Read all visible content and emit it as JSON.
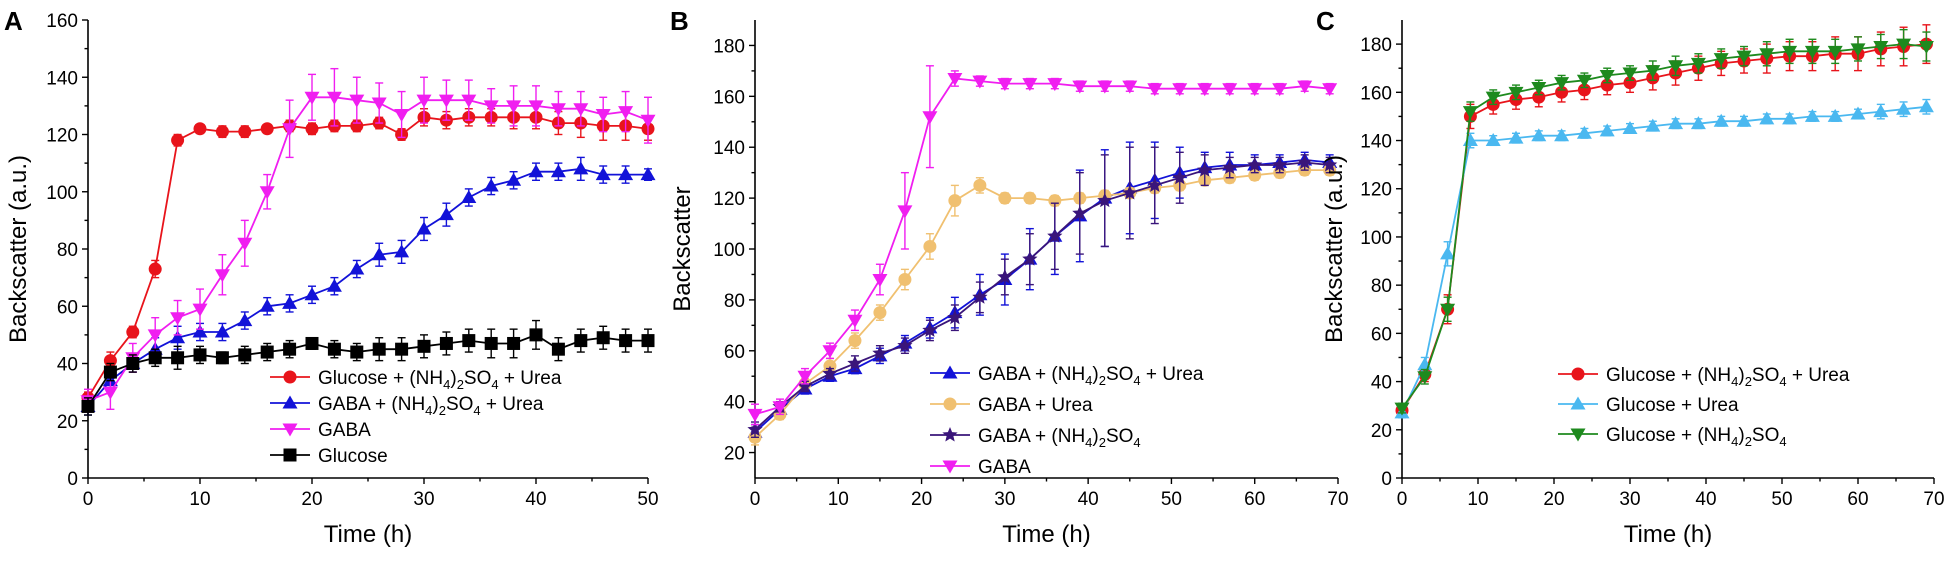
{
  "chart_data": [
    {
      "panel": "A",
      "type": "line",
      "xlabel": "Time (h)",
      "ylabel": "Backscatter (a.u.)",
      "xlim": [
        0,
        50
      ],
      "ylim": [
        0,
        160
      ],
      "xticks": [
        0,
        10,
        20,
        30,
        40,
        50
      ],
      "yticks": [
        0,
        20,
        40,
        60,
        80,
        100,
        120,
        140,
        160
      ],
      "legend_position": "bottom-right",
      "series": [
        {
          "name": "Glucose + (NH4)2SO4 + Urea",
          "label_parts": [
            "Glucose + (NH",
            "4",
            ")",
            "2",
            "SO",
            "4",
            " + Urea"
          ],
          "color": "#e8141b",
          "marker": "circle",
          "x": [
            0,
            2,
            4,
            6,
            8,
            10,
            12,
            14,
            16,
            18,
            20,
            22,
            24,
            26,
            28,
            30,
            32,
            34,
            36,
            38,
            40,
            42,
            44,
            46,
            48,
            50
          ],
          "y": [
            28,
            41,
            51,
            73,
            118,
            122,
            121,
            121,
            122,
            123,
            122,
            123,
            123,
            124,
            120,
            126,
            125,
            126,
            126,
            126,
            126,
            124,
            124,
            123,
            123,
            122
          ],
          "err": [
            2,
            3,
            2,
            3,
            2,
            1,
            2,
            2,
            1,
            2,
            2,
            2,
            2,
            2,
            2,
            3,
            3,
            3,
            3,
            4,
            4,
            4,
            5,
            5,
            5,
            4
          ]
        },
        {
          "name": "GABA + (NH4)2SO4 + Urea",
          "label_parts": [
            "GABA + (NH",
            "4",
            ")",
            "2",
            "SO",
            "4",
            " + Urea"
          ],
          "color": "#1212d8",
          "marker": "triangle-up",
          "x": [
            0,
            2,
            4,
            6,
            8,
            10,
            12,
            14,
            16,
            18,
            20,
            22,
            24,
            26,
            28,
            30,
            32,
            34,
            36,
            38,
            40,
            42,
            44,
            46,
            48,
            50
          ],
          "y": [
            25,
            34,
            40,
            45,
            49,
            51,
            51,
            55,
            60,
            61,
            64,
            67,
            73,
            78,
            79,
            87,
            92,
            98,
            102,
            104,
            107,
            107,
            108,
            106,
            106,
            106
          ],
          "err": [
            3,
            3,
            3,
            4,
            4,
            3,
            3,
            3,
            3,
            3,
            3,
            3,
            3,
            4,
            4,
            4,
            4,
            3,
            3,
            3,
            3,
            3,
            4,
            3,
            3,
            2
          ]
        },
        {
          "name": "GABA",
          "label_parts": [
            "GABA"
          ],
          "color": "#f01ef0",
          "marker": "triangle-down",
          "x": [
            0,
            2,
            4,
            6,
            8,
            10,
            12,
            14,
            16,
            18,
            20,
            22,
            24,
            26,
            28,
            30,
            32,
            34,
            36,
            38,
            40,
            42,
            44,
            46,
            48,
            50
          ],
          "y": [
            27,
            30,
            42,
            50,
            56,
            59,
            71,
            82,
            100,
            122,
            133,
            133,
            132,
            131,
            127,
            132,
            132,
            132,
            130,
            130,
            130,
            129,
            129,
            127,
            128,
            125
          ],
          "err": [
            4,
            6,
            5,
            6,
            6,
            7,
            7,
            8,
            6,
            10,
            8,
            10,
            8,
            7,
            8,
            8,
            7,
            7,
            6,
            7,
            7,
            6,
            6,
            6,
            7,
            8
          ]
        },
        {
          "name": "Glucose",
          "label_parts": [
            "Glucose"
          ],
          "color": "#000000",
          "marker": "square",
          "x": [
            0,
            2,
            4,
            6,
            8,
            10,
            12,
            14,
            16,
            18,
            20,
            22,
            24,
            26,
            28,
            30,
            32,
            34,
            36,
            38,
            40,
            42,
            44,
            46,
            48,
            50
          ],
          "y": [
            25,
            37,
            40,
            42,
            42,
            43,
            42,
            43,
            44,
            45,
            47,
            45,
            44,
            45,
            45,
            46,
            47,
            48,
            47,
            47,
            50,
            45,
            48,
            49,
            48,
            48
          ],
          "err": [
            3,
            3,
            3,
            3,
            4,
            3,
            2,
            3,
            3,
            3,
            2,
            3,
            3,
            4,
            4,
            4,
            4,
            4,
            5,
            5,
            5,
            4,
            4,
            4,
            4,
            4
          ]
        }
      ]
    },
    {
      "panel": "B",
      "type": "line",
      "xlabel": "Time (h)",
      "ylabel": "Backscatter",
      "xlim": [
        0,
        70
      ],
      "ylim": [
        10,
        190
      ],
      "xticks": [
        0,
        10,
        20,
        30,
        40,
        50,
        60,
        70
      ],
      "yticks": [
        20,
        40,
        60,
        80,
        100,
        120,
        140,
        160,
        180
      ],
      "legend_position": "bottom-right",
      "series": [
        {
          "name": "GABA + (NH4)2SO4 + Urea",
          "label_parts": [
            "GABA + (NH",
            "4",
            ")",
            "2",
            "SO",
            "4",
            " + Urea"
          ],
          "color": "#1212d8",
          "marker": "triangle-up",
          "x": [
            0,
            3,
            6,
            9,
            12,
            15,
            18,
            21,
            24,
            27,
            30,
            33,
            36,
            39,
            42,
            45,
            48,
            51,
            54,
            57,
            60,
            63,
            66,
            69
          ],
          "y": [
            28,
            37,
            45,
            50,
            53,
            58,
            63,
            69,
            75,
            82,
            88,
            96,
            105,
            113,
            120,
            124,
            127,
            130,
            132,
            133,
            133,
            134,
            135,
            134
          ],
          "err": [
            3,
            2,
            2,
            2,
            2,
            3,
            3,
            4,
            6,
            8,
            10,
            12,
            15,
            18,
            19,
            18,
            15,
            10,
            6,
            5,
            4,
            3,
            3,
            3
          ]
        },
        {
          "name": "GABA + Urea",
          "label_parts": [
            "GABA + Urea"
          ],
          "color": "#f0c070",
          "marker": "circle",
          "x": [
            0,
            3,
            6,
            9,
            12,
            15,
            18,
            21,
            24,
            27,
            30,
            33,
            36,
            39,
            42,
            45,
            48,
            51,
            54,
            57,
            60,
            63,
            66,
            69
          ],
          "y": [
            26,
            35,
            47,
            54,
            64,
            75,
            88,
            101,
            119,
            125,
            120,
            120,
            119,
            120,
            121,
            122,
            124,
            125,
            127,
            128,
            129,
            130,
            131,
            131
          ],
          "err": [
            3,
            2,
            2,
            3,
            3,
            3,
            4,
            5,
            6,
            3,
            2,
            2,
            2,
            2,
            2,
            2,
            2,
            2,
            2,
            2,
            2,
            2,
            2,
            2
          ]
        },
        {
          "name": "GABA + (NH4)2SO4",
          "label_parts": [
            "GABA + (NH",
            "4",
            ")",
            "2",
            "SO",
            "4"
          ],
          "color": "#3a157a",
          "marker": "star",
          "x": [
            0,
            3,
            6,
            9,
            12,
            15,
            18,
            21,
            24,
            27,
            30,
            33,
            36,
            39,
            42,
            45,
            48,
            51,
            54,
            57,
            60,
            63,
            66,
            69
          ],
          "y": [
            29,
            38,
            46,
            51,
            55,
            59,
            62,
            68,
            73,
            81,
            89,
            96,
            105,
            114,
            119,
            122,
            125,
            128,
            131,
            132,
            133,
            133,
            134,
            133
          ],
          "err": [
            3,
            2,
            2,
            2,
            3,
            3,
            3,
            4,
            5,
            6,
            7,
            10,
            13,
            16,
            18,
            18,
            15,
            10,
            6,
            4,
            3,
            3,
            3,
            3
          ]
        },
        {
          "name": "GABA",
          "label_parts": [
            "GABA"
          ],
          "color": "#f01ef0",
          "marker": "triangle-down",
          "x": [
            0,
            3,
            6,
            9,
            12,
            15,
            18,
            21,
            24,
            27,
            30,
            33,
            36,
            39,
            42,
            45,
            48,
            51,
            54,
            57,
            60,
            63,
            66,
            69
          ],
          "y": [
            35,
            38,
            50,
            60,
            72,
            88,
            115,
            152,
            167,
            166,
            165,
            165,
            165,
            164,
            164,
            164,
            163,
            163,
            163,
            163,
            163,
            163,
            164,
            163
          ],
          "err": [
            4,
            3,
            3,
            3,
            4,
            6,
            15,
            20,
            3,
            2,
            2,
            2,
            2,
            2,
            2,
            2,
            2,
            2,
            2,
            2,
            2,
            2,
            2,
            2
          ]
        }
      ]
    },
    {
      "panel": "C",
      "type": "line",
      "xlabel": "Time (h)",
      "ylabel": "Backscatter (a.u.)",
      "xlim": [
        0,
        70
      ],
      "ylim": [
        0,
        190
      ],
      "xticks": [
        0,
        10,
        20,
        30,
        40,
        50,
        60,
        70
      ],
      "yticks": [
        0,
        20,
        40,
        60,
        80,
        100,
        120,
        140,
        160,
        180
      ],
      "legend_position": "bottom-right",
      "series": [
        {
          "name": "Glucose + (NH4)2SO4 + Urea",
          "label_parts": [
            "Glucose + (NH",
            "4",
            ")",
            "2",
            "SO",
            "4",
            " + Urea"
          ],
          "color": "#e8141b",
          "marker": "circle",
          "x": [
            0,
            3,
            6,
            9,
            12,
            15,
            18,
            21,
            24,
            27,
            30,
            33,
            36,
            39,
            42,
            45,
            48,
            51,
            54,
            57,
            60,
            63,
            66,
            69
          ],
          "y": [
            28,
            43,
            70,
            150,
            155,
            157,
            158,
            160,
            161,
            163,
            164,
            166,
            168,
            170,
            172,
            173,
            174,
            175,
            175,
            176,
            176,
            178,
            179,
            180
          ],
          "err": [
            2,
            3,
            6,
            5,
            4,
            4,
            4,
            4,
            4,
            4,
            4,
            5,
            5,
            5,
            5,
            5,
            6,
            6,
            6,
            7,
            7,
            7,
            8,
            8
          ]
        },
        {
          "name": "Glucose + Urea",
          "label_parts": [
            "Glucose + Urea"
          ],
          "color": "#4ab8f0",
          "marker": "triangle-up",
          "x": [
            0,
            3,
            6,
            9,
            12,
            15,
            18,
            21,
            24,
            27,
            30,
            33,
            36,
            39,
            42,
            45,
            48,
            51,
            54,
            57,
            60,
            63,
            66,
            69
          ],
          "y": [
            27,
            47,
            93,
            140,
            140,
            141,
            142,
            142,
            143,
            144,
            145,
            146,
            147,
            147,
            148,
            148,
            149,
            149,
            150,
            150,
            151,
            152,
            153,
            154
          ],
          "err": [
            2,
            3,
            5,
            3,
            2,
            2,
            2,
            2,
            2,
            2,
            2,
            2,
            2,
            2,
            2,
            2,
            2,
            2,
            2,
            2,
            2,
            3,
            3,
            3
          ]
        },
        {
          "name": "Glucose + (NH4)2SO4",
          "label_parts": [
            "Glucose + (NH",
            "4",
            ")",
            "2",
            "SO",
            "4"
          ],
          "color": "#1e8a1e",
          "marker": "triangle-down",
          "x": [
            0,
            3,
            6,
            9,
            12,
            15,
            18,
            21,
            24,
            27,
            30,
            33,
            36,
            39,
            42,
            45,
            48,
            51,
            54,
            57,
            60,
            63,
            66,
            69
          ],
          "y": [
            29,
            42,
            70,
            152,
            158,
            160,
            162,
            164,
            165,
            167,
            168,
            169,
            171,
            172,
            174,
            175,
            176,
            177,
            177,
            177,
            178,
            179,
            180,
            179
          ],
          "err": [
            2,
            3,
            5,
            4,
            3,
            3,
            3,
            3,
            3,
            3,
            3,
            4,
            4,
            4,
            4,
            4,
            5,
            5,
            5,
            5,
            5,
            5,
            6,
            6
          ]
        }
      ]
    }
  ]
}
